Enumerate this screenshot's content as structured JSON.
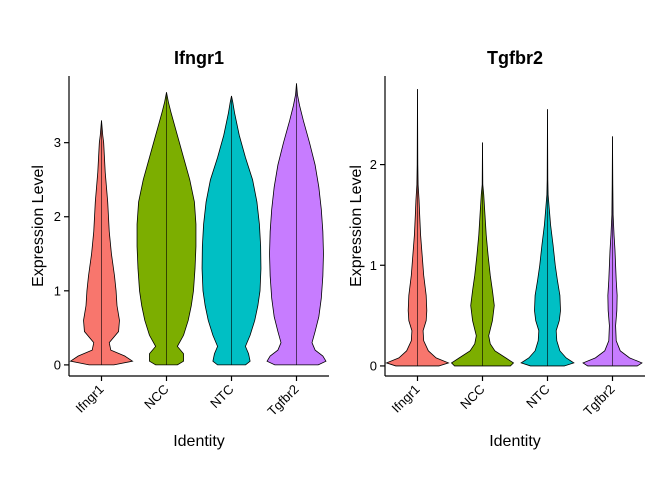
{
  "chart_data": [
    {
      "type": "violin",
      "title": "Ifngr1",
      "xlabel": "Identity",
      "ylabel": "Expression Level",
      "categories": [
        "Ifngr1",
        "NCC",
        "NTC",
        "Tgfbr2"
      ],
      "colors": [
        "#F8766D",
        "#7CAE00",
        "#00BFC4",
        "#C77CFF"
      ],
      "ylim": [
        -0.15,
        3.9
      ],
      "yticks": [
        0,
        1,
        2,
        3
      ],
      "violins": [
        {
          "max": 3.3,
          "profile": [
            [
              0,
              0.4
            ],
            [
              0.05,
              1.0
            ],
            [
              0.12,
              0.75
            ],
            [
              0.2,
              0.3
            ],
            [
              0.3,
              0.25
            ],
            [
              0.45,
              0.55
            ],
            [
              0.6,
              0.58
            ],
            [
              0.8,
              0.5
            ],
            [
              1.0,
              0.47
            ],
            [
              1.2,
              0.42
            ],
            [
              1.5,
              0.32
            ],
            [
              1.8,
              0.25
            ],
            [
              2.2,
              0.2
            ],
            [
              2.6,
              0.12
            ],
            [
              3.0,
              0.07
            ],
            [
              3.1,
              0.04
            ],
            [
              3.3,
              0.0
            ]
          ]
        },
        {
          "max": 3.68,
          "profile": [
            [
              0,
              0.35
            ],
            [
              0.05,
              0.55
            ],
            [
              0.15,
              0.55
            ],
            [
              0.25,
              0.35
            ],
            [
              0.4,
              0.55
            ],
            [
              0.6,
              0.7
            ],
            [
              0.8,
              0.8
            ],
            [
              1.0,
              0.87
            ],
            [
              1.3,
              0.92
            ],
            [
              1.6,
              0.95
            ],
            [
              1.9,
              0.95
            ],
            [
              2.2,
              0.9
            ],
            [
              2.5,
              0.75
            ],
            [
              2.8,
              0.55
            ],
            [
              3.1,
              0.35
            ],
            [
              3.4,
              0.15
            ],
            [
              3.55,
              0.06
            ],
            [
              3.68,
              0.0
            ]
          ]
        },
        {
          "max": 3.63,
          "profile": [
            [
              0,
              0.45
            ],
            [
              0.05,
              0.6
            ],
            [
              0.15,
              0.55
            ],
            [
              0.25,
              0.45
            ],
            [
              0.4,
              0.6
            ],
            [
              0.6,
              0.75
            ],
            [
              0.8,
              0.85
            ],
            [
              1.0,
              0.92
            ],
            [
              1.3,
              0.95
            ],
            [
              1.6,
              0.94
            ],
            [
              1.9,
              0.9
            ],
            [
              2.2,
              0.82
            ],
            [
              2.5,
              0.68
            ],
            [
              2.8,
              0.45
            ],
            [
              3.1,
              0.25
            ],
            [
              3.4,
              0.1
            ],
            [
              3.55,
              0.04
            ],
            [
              3.63,
              0.0
            ]
          ]
        },
        {
          "max": 3.8,
          "profile": [
            [
              0,
              0.7
            ],
            [
              0.05,
              0.95
            ],
            [
              0.12,
              0.85
            ],
            [
              0.2,
              0.6
            ],
            [
              0.3,
              0.5
            ],
            [
              0.45,
              0.6
            ],
            [
              0.65,
              0.72
            ],
            [
              0.9,
              0.8
            ],
            [
              1.2,
              0.85
            ],
            [
              1.5,
              0.87
            ],
            [
              1.8,
              0.85
            ],
            [
              2.1,
              0.8
            ],
            [
              2.4,
              0.72
            ],
            [
              2.7,
              0.6
            ],
            [
              3.0,
              0.42
            ],
            [
              3.3,
              0.22
            ],
            [
              3.5,
              0.1
            ],
            [
              3.65,
              0.03
            ],
            [
              3.8,
              0.0
            ]
          ]
        }
      ]
    },
    {
      "type": "violin",
      "title": "Tgfbr2",
      "xlabel": "Identity",
      "ylabel": "Expression Level",
      "categories": [
        "Ifngr1",
        "NCC",
        "NTC",
        "Tgfbr2"
      ],
      "colors": [
        "#F8766D",
        "#7CAE00",
        "#00BFC4",
        "#C77CFF"
      ],
      "ylim": [
        -0.1,
        2.88
      ],
      "yticks": [
        0,
        1,
        2
      ],
      "violins": [
        {
          "max": 2.75,
          "profile": [
            [
              0,
              0.7
            ],
            [
              0.03,
              1.0
            ],
            [
              0.08,
              0.6
            ],
            [
              0.15,
              0.35
            ],
            [
              0.25,
              0.2
            ],
            [
              0.35,
              0.18
            ],
            [
              0.45,
              0.28
            ],
            [
              0.55,
              0.3
            ],
            [
              0.7,
              0.28
            ],
            [
              0.9,
              0.2
            ],
            [
              1.1,
              0.15
            ],
            [
              1.3,
              0.1
            ],
            [
              1.5,
              0.07
            ],
            [
              1.65,
              0.05
            ],
            [
              1.8,
              0.02
            ],
            [
              2.0,
              0.01
            ],
            [
              2.75,
              0.0
            ]
          ]
        },
        {
          "max": 2.22,
          "profile": [
            [
              0,
              0.9
            ],
            [
              0.03,
              1.0
            ],
            [
              0.08,
              0.75
            ],
            [
              0.15,
              0.4
            ],
            [
              0.22,
              0.25
            ],
            [
              0.3,
              0.2
            ],
            [
              0.45,
              0.32
            ],
            [
              0.6,
              0.38
            ],
            [
              0.75,
              0.32
            ],
            [
              0.9,
              0.25
            ],
            [
              1.1,
              0.18
            ],
            [
              1.3,
              0.12
            ],
            [
              1.5,
              0.08
            ],
            [
              1.7,
              0.04
            ],
            [
              1.8,
              0.01
            ],
            [
              2.22,
              0.0
            ]
          ]
        },
        {
          "max": 2.55,
          "profile": [
            [
              0,
              0.55
            ],
            [
              0.03,
              0.85
            ],
            [
              0.08,
              0.6
            ],
            [
              0.15,
              0.4
            ],
            [
              0.25,
              0.3
            ],
            [
              0.35,
              0.28
            ],
            [
              0.45,
              0.38
            ],
            [
              0.55,
              0.42
            ],
            [
              0.7,
              0.4
            ],
            [
              0.85,
              0.32
            ],
            [
              1.0,
              0.25
            ],
            [
              1.2,
              0.18
            ],
            [
              1.4,
              0.1
            ],
            [
              1.55,
              0.06
            ],
            [
              1.7,
              0.02
            ],
            [
              1.85,
              0.01
            ],
            [
              2.55,
              0.0
            ]
          ]
        },
        {
          "max": 2.28,
          "profile": [
            [
              0,
              0.8
            ],
            [
              0.03,
              0.95
            ],
            [
              0.08,
              0.55
            ],
            [
              0.15,
              0.25
            ],
            [
              0.25,
              0.12
            ],
            [
              0.4,
              0.1
            ],
            [
              0.55,
              0.14
            ],
            [
              0.7,
              0.15
            ],
            [
              0.85,
              0.12
            ],
            [
              1.0,
              0.1
            ],
            [
              1.15,
              0.08
            ],
            [
              1.3,
              0.05
            ],
            [
              1.5,
              0.02
            ],
            [
              1.8,
              0.01
            ],
            [
              2.28,
              0.0
            ]
          ]
        }
      ]
    }
  ]
}
